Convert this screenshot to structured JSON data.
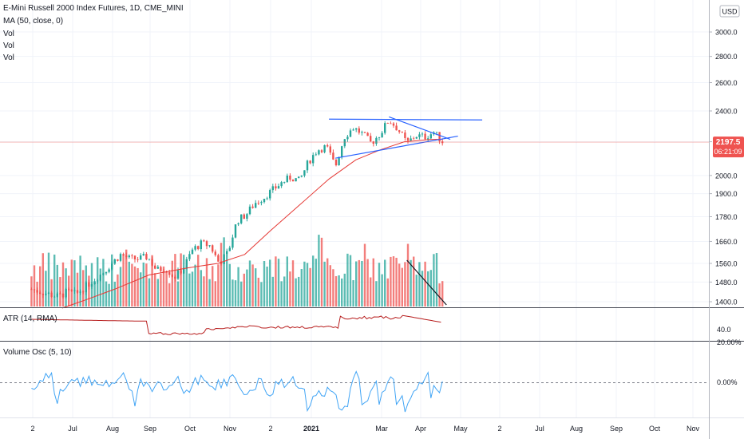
{
  "legend": {
    "title": "E-Mini Russell 2000 Index Futures, 1D, CME_MINI",
    "ma": "MA (50, close, 0)",
    "vol1": "Vol",
    "vol2": "Vol",
    "vol3": "Vol"
  },
  "currency": "USD",
  "last_price": {
    "value": "2197.5",
    "countdown": "06:21:09",
    "color": "#ef5350"
  },
  "colors": {
    "up": "#26a69a",
    "down": "#ef5350",
    "ma": "#e53935",
    "trendline": "#2962ff",
    "osc": "#42a5f5",
    "atr": "#b71c1c"
  },
  "chart_data": [
    {
      "type": "candlestick",
      "title": "E-Mini Russell 2000 Index Futures, 1D, CME_MINI",
      "y_ticks": [
        "3000.0",
        "2800.0",
        "2600.0",
        "2400.0",
        "2200.0",
        "2000.0",
        "1900.0",
        "1780.0",
        "1660.0",
        "1560.0",
        "1480.0",
        "1400.0"
      ],
      "x_ticks": [
        "2",
        "Jul",
        "Aug",
        "Sep",
        "Oct",
        "Nov",
        "2",
        "2021",
        "Mar",
        "Apr",
        "May",
        "2",
        "Jul",
        "Aug",
        "Sep",
        "Oct",
        "Nov"
      ],
      "log_scale": true,
      "ylim": [
        1370,
        3000
      ],
      "series": [
        {
          "name": "MA (50, close, 0)",
          "type": "line"
        },
        {
          "name": "Vol",
          "type": "bar"
        }
      ],
      "close_path": [
        {
          "x": "2020-06-01",
          "y": 1450
        },
        {
          "x": "2020-06-08",
          "y": 1440
        },
        {
          "x": "2020-06-15",
          "y": 1430
        },
        {
          "x": "2020-06-22",
          "y": 1420
        },
        {
          "x": "2020-06-29",
          "y": 1440
        },
        {
          "x": "2020-07-06",
          "y": 1430
        },
        {
          "x": "2020-07-13",
          "y": 1460
        },
        {
          "x": "2020-07-20",
          "y": 1490
        },
        {
          "x": "2020-07-27",
          "y": 1520
        },
        {
          "x": "2020-08-03",
          "y": 1560
        },
        {
          "x": "2020-08-10",
          "y": 1600
        },
        {
          "x": "2020-08-17",
          "y": 1580
        },
        {
          "x": "2020-08-24",
          "y": 1580
        },
        {
          "x": "2020-08-31",
          "y": 1590
        },
        {
          "x": "2020-09-07",
          "y": 1530
        },
        {
          "x": "2020-09-14",
          "y": 1540
        },
        {
          "x": "2020-09-21",
          "y": 1500
        },
        {
          "x": "2020-09-28",
          "y": 1540
        },
        {
          "x": "2020-10-05",
          "y": 1620
        },
        {
          "x": "2020-10-12",
          "y": 1650
        },
        {
          "x": "2020-10-19",
          "y": 1640
        },
        {
          "x": "2020-10-26",
          "y": 1560
        },
        {
          "x": "2020-11-02",
          "y": 1610
        },
        {
          "x": "2020-11-09",
          "y": 1760
        },
        {
          "x": "2020-11-16",
          "y": 1790
        },
        {
          "x": "2020-11-23",
          "y": 1850
        },
        {
          "x": "2020-11-30",
          "y": 1880
        },
        {
          "x": "2020-12-07",
          "y": 1920
        },
        {
          "x": "2020-12-14",
          "y": 1960
        },
        {
          "x": "2020-12-21",
          "y": 1990
        },
        {
          "x": "2020-12-28",
          "y": 1970
        },
        {
          "x": "2021-01-04",
          "y": 2080
        },
        {
          "x": "2021-01-11",
          "y": 2150
        },
        {
          "x": "2021-01-18",
          "y": 2170
        },
        {
          "x": "2021-01-25",
          "y": 2050
        },
        {
          "x": "2021-02-01",
          "y": 2230
        },
        {
          "x": "2021-02-08",
          "y": 2290
        },
        {
          "x": "2021-02-15",
          "y": 2250
        },
        {
          "x": "2021-02-22",
          "y": 2190
        },
        {
          "x": "2021-03-01",
          "y": 2250
        },
        {
          "x": "2021-03-08",
          "y": 2340
        },
        {
          "x": "2021-03-15",
          "y": 2280
        },
        {
          "x": "2021-03-22",
          "y": 2190
        },
        {
          "x": "2021-03-29",
          "y": 2240
        },
        {
          "x": "2021-04-05",
          "y": 2230
        },
        {
          "x": "2021-04-12",
          "y": 2260
        },
        {
          "x": "2021-04-19",
          "y": 2200
        }
      ],
      "ma_path": [
        {
          "x": "2020-06-25",
          "y": 1375
        },
        {
          "x": "2020-07-15",
          "y": 1410
        },
        {
          "x": "2020-08-05",
          "y": 1450
        },
        {
          "x": "2020-09-01",
          "y": 1510
        },
        {
          "x": "2020-10-01",
          "y": 1540
        },
        {
          "x": "2020-10-25",
          "y": 1560
        },
        {
          "x": "2020-11-15",
          "y": 1600
        },
        {
          "x": "2020-12-05",
          "y": 1710
        },
        {
          "x": "2020-12-28",
          "y": 1840
        },
        {
          "x": "2021-01-20",
          "y": 1980
        },
        {
          "x": "2021-02-10",
          "y": 2090
        },
        {
          "x": "2021-03-01",
          "y": 2150
        },
        {
          "x": "2021-03-20",
          "y": 2200
        },
        {
          "x": "2021-04-10",
          "y": 2215
        },
        {
          "x": "2021-04-19",
          "y": 2215
        }
      ],
      "annotations": [
        {
          "type": "horizontal-resistance",
          "from": {
            "x": "2021-01-20",
            "y": 2345
          },
          "to": {
            "x": "2021-05-20",
            "y": 2340
          }
        },
        {
          "type": "descending-trendline",
          "from": {
            "x": "2021-03-08",
            "y": 2360
          },
          "to": {
            "x": "2021-04-25",
            "y": 2215
          }
        },
        {
          "type": "ascending-trendline",
          "from": {
            "x": "2021-01-25",
            "y": 2100
          },
          "to": {
            "x": "2021-05-01",
            "y": 2235
          }
        },
        {
          "type": "volume-trendline",
          "from": {
            "x": "2021-03-22",
            "y": null
          },
          "to": {
            "x": "2021-04-22",
            "y": null
          }
        }
      ]
    },
    {
      "type": "line",
      "title": "ATR (14, RMA)",
      "y_ticks": [
        "40.0"
      ]
    },
    {
      "type": "line",
      "title": "Volume Osc (5, 10)",
      "y_ticks": [
        "20.00%",
        "0.00%"
      ]
    }
  ]
}
